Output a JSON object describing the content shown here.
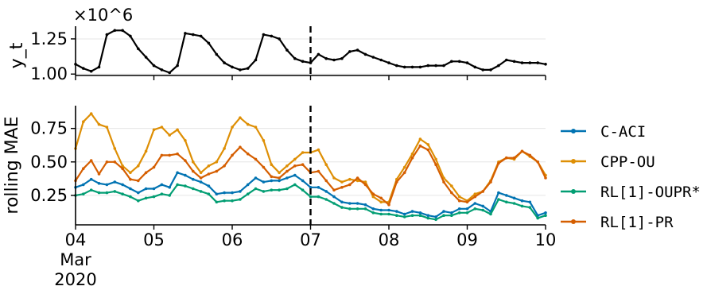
{
  "chart_data": [
    {
      "type": "line",
      "ylabel": "y_t",
      "y_multiplier": "×10^6",
      "ylim": [
        0.99,
        1.34
      ],
      "yticks": [
        "1.00",
        "1.25"
      ],
      "ytick_values": [
        1.0,
        1.25
      ],
      "grid": "horizontal",
      "vline_x": 3.0,
      "series": [
        {
          "color": "#000000",
          "x": [
            0,
            0.1,
            0.2,
            0.3,
            0.4,
            0.5,
            0.6,
            0.7,
            0.8,
            0.9,
            1.0,
            1.1,
            1.2,
            1.3,
            1.4,
            1.5,
            1.6,
            1.7,
            1.8,
            1.9,
            2.0,
            2.1,
            2.2,
            2.3,
            2.4,
            2.5,
            2.6,
            2.7,
            2.8,
            2.9,
            3.0,
            3.1,
            3.2,
            3.3,
            3.4,
            3.5,
            3.6,
            3.7,
            3.8,
            3.9,
            4.0,
            4.1,
            4.2,
            4.3,
            4.4,
            4.5,
            4.6,
            4.7,
            4.8,
            4.9,
            5.0,
            5.1,
            5.2,
            5.3,
            5.4,
            5.5,
            5.6,
            5.7,
            5.8,
            5.9,
            6.0
          ],
          "values": [
            1.07,
            1.04,
            1.02,
            1.05,
            1.28,
            1.31,
            1.31,
            1.27,
            1.18,
            1.12,
            1.06,
            1.03,
            1.01,
            1.06,
            1.29,
            1.28,
            1.27,
            1.22,
            1.14,
            1.08,
            1.05,
            1.03,
            1.04,
            1.1,
            1.28,
            1.27,
            1.25,
            1.17,
            1.11,
            1.09,
            1.08,
            1.14,
            1.11,
            1.1,
            1.11,
            1.16,
            1.17,
            1.14,
            1.12,
            1.1,
            1.08,
            1.06,
            1.05,
            1.05,
            1.05,
            1.06,
            1.06,
            1.06,
            1.09,
            1.09,
            1.08,
            1.05,
            1.03,
            1.03,
            1.06,
            1.1,
            1.09,
            1.08,
            1.08,
            1.08,
            1.07
          ]
        }
      ]
    },
    {
      "type": "line",
      "ylabel": "rolling MAE",
      "xlabel": "",
      "ylim": [
        0.03,
        0.92
      ],
      "yticks": [
        "0.25",
        "0.50",
        "0.75"
      ],
      "ytick_values": [
        0.25,
        0.5,
        0.75
      ],
      "xticks": [
        "04",
        "05",
        "06",
        "07",
        "08",
        "09",
        "10"
      ],
      "xtick_values": [
        0,
        1,
        2,
        3,
        4,
        5,
        6
      ],
      "xtick_extra": [
        "Mar",
        "2020"
      ],
      "grid": "horizontal",
      "vline_x": 3.0,
      "legend": "right",
      "series": [
        {
          "name": "C-ACI",
          "color": "#0173b2",
          "x": [
            0,
            0.1,
            0.2,
            0.3,
            0.4,
            0.5,
            0.6,
            0.7,
            0.8,
            0.9,
            1.0,
            1.1,
            1.2,
            1.3,
            1.4,
            1.5,
            1.6,
            1.7,
            1.8,
            1.9,
            2.0,
            2.1,
            2.2,
            2.3,
            2.4,
            2.5,
            2.6,
            2.7,
            2.8,
            2.9,
            3.0,
            3.1,
            3.2,
            3.3,
            3.4,
            3.5,
            3.6,
            3.7,
            3.8,
            3.9,
            4.0,
            4.1,
            4.2,
            4.3,
            4.4,
            4.5,
            4.6,
            4.7,
            4.8,
            4.9,
            5.0,
            5.1,
            5.2,
            5.3,
            5.4,
            5.5,
            5.6,
            5.7,
            5.8,
            5.9,
            6.0
          ],
          "values": [
            0.31,
            0.33,
            0.37,
            0.34,
            0.33,
            0.35,
            0.33,
            0.3,
            0.27,
            0.3,
            0.3,
            0.33,
            0.31,
            0.42,
            0.4,
            0.37,
            0.35,
            0.32,
            0.26,
            0.27,
            0.27,
            0.28,
            0.33,
            0.38,
            0.35,
            0.36,
            0.36,
            0.38,
            0.4,
            0.36,
            0.31,
            0.31,
            0.28,
            0.24,
            0.2,
            0.19,
            0.19,
            0.18,
            0.15,
            0.14,
            0.14,
            0.13,
            0.11,
            0.13,
            0.12,
            0.1,
            0.09,
            0.13,
            0.12,
            0.15,
            0.15,
            0.19,
            0.17,
            0.13,
            0.27,
            0.25,
            0.23,
            0.21,
            0.2,
            0.1,
            0.12
          ]
        },
        {
          "name": "CPP-OU",
          "color": "#de8f05",
          "x": [
            0,
            0.1,
            0.2,
            0.3,
            0.4,
            0.5,
            0.6,
            0.7,
            0.8,
            0.9,
            1.0,
            1.1,
            1.2,
            1.3,
            1.4,
            1.5,
            1.6,
            1.7,
            1.8,
            1.9,
            2.0,
            2.1,
            2.2,
            2.3,
            2.4,
            2.5,
            2.6,
            2.7,
            2.8,
            2.9,
            3.0,
            3.1,
            3.2,
            3.3,
            3.4,
            3.5,
            3.6,
            3.7,
            3.8,
            3.9,
            4.0,
            4.1,
            4.2,
            4.3,
            4.4,
            4.5,
            4.6,
            4.7,
            4.8,
            4.9,
            5.0,
            5.1,
            5.2,
            5.3,
            5.4,
            5.5,
            5.6,
            5.7,
            5.8,
            5.9,
            6.0
          ],
          "values": [
            0.6,
            0.8,
            0.86,
            0.78,
            0.76,
            0.6,
            0.47,
            0.42,
            0.47,
            0.58,
            0.74,
            0.76,
            0.7,
            0.74,
            0.66,
            0.5,
            0.42,
            0.47,
            0.5,
            0.6,
            0.76,
            0.83,
            0.78,
            0.76,
            0.66,
            0.48,
            0.42,
            0.47,
            0.52,
            0.57,
            0.57,
            0.59,
            0.48,
            0.38,
            0.35,
            0.37,
            0.36,
            0.35,
            0.24,
            0.2,
            0.2,
            0.37,
            0.46,
            0.56,
            0.67,
            0.63,
            0.52,
            0.38,
            0.32,
            0.24,
            0.21,
            0.26,
            0.28,
            0.36,
            0.5,
            0.53,
            0.52,
            0.58,
            0.54,
            0.5,
            0.4
          ]
        },
        {
          "name": "RL[1]-OUPR*",
          "color": "#029e73",
          "x": [
            0,
            0.1,
            0.2,
            0.3,
            0.4,
            0.5,
            0.6,
            0.7,
            0.8,
            0.9,
            1.0,
            1.1,
            1.2,
            1.3,
            1.4,
            1.5,
            1.6,
            1.7,
            1.8,
            1.9,
            2.0,
            2.1,
            2.2,
            2.3,
            2.4,
            2.5,
            2.6,
            2.7,
            2.8,
            2.9,
            3.0,
            3.1,
            3.2,
            3.3,
            3.4,
            3.5,
            3.6,
            3.7,
            3.8,
            3.9,
            4.0,
            4.1,
            4.2,
            4.3,
            4.4,
            4.5,
            4.6,
            4.7,
            4.8,
            4.9,
            5.0,
            5.1,
            5.2,
            5.3,
            5.4,
            5.5,
            5.6,
            5.7,
            5.8,
            5.9,
            6.0
          ],
          "values": [
            0.25,
            0.26,
            0.29,
            0.27,
            0.27,
            0.28,
            0.26,
            0.24,
            0.21,
            0.23,
            0.24,
            0.26,
            0.25,
            0.33,
            0.32,
            0.3,
            0.28,
            0.26,
            0.2,
            0.21,
            0.21,
            0.22,
            0.26,
            0.3,
            0.28,
            0.29,
            0.29,
            0.3,
            0.33,
            0.29,
            0.24,
            0.24,
            0.22,
            0.19,
            0.16,
            0.15,
            0.15,
            0.15,
            0.12,
            0.11,
            0.11,
            0.1,
            0.09,
            0.1,
            0.1,
            0.08,
            0.07,
            0.1,
            0.1,
            0.12,
            0.12,
            0.15,
            0.14,
            0.11,
            0.22,
            0.2,
            0.19,
            0.17,
            0.16,
            0.08,
            0.1
          ]
        },
        {
          "name": "RL[1]-PR",
          "color": "#d55e00",
          "x": [
            0,
            0.1,
            0.2,
            0.3,
            0.4,
            0.5,
            0.6,
            0.7,
            0.8,
            0.9,
            1.0,
            1.1,
            1.2,
            1.3,
            1.4,
            1.5,
            1.6,
            1.7,
            1.8,
            1.9,
            2.0,
            2.1,
            2.2,
            2.3,
            2.4,
            2.5,
            2.6,
            2.7,
            2.8,
            2.9,
            3.0,
            3.1,
            3.2,
            3.3,
            3.4,
            3.5,
            3.6,
            3.7,
            3.8,
            3.9,
            4.0,
            4.1,
            4.2,
            4.3,
            4.4,
            4.5,
            4.6,
            4.7,
            4.8,
            4.9,
            5.0,
            5.1,
            5.2,
            5.3,
            5.4,
            5.5,
            5.6,
            5.7,
            5.8,
            5.9,
            6.0
          ],
          "values": [
            0.36,
            0.45,
            0.51,
            0.41,
            0.5,
            0.5,
            0.45,
            0.37,
            0.36,
            0.42,
            0.46,
            0.55,
            0.55,
            0.56,
            0.51,
            0.43,
            0.38,
            0.41,
            0.43,
            0.47,
            0.55,
            0.61,
            0.56,
            0.52,
            0.46,
            0.39,
            0.38,
            0.43,
            0.47,
            0.48,
            0.42,
            0.43,
            0.36,
            0.29,
            0.31,
            0.33,
            0.38,
            0.33,
            0.26,
            0.23,
            0.18,
            0.35,
            0.42,
            0.53,
            0.62,
            0.59,
            0.48,
            0.35,
            0.27,
            0.21,
            0.2,
            0.24,
            0.28,
            0.35,
            0.49,
            0.53,
            0.53,
            0.58,
            0.55,
            0.5,
            0.38
          ]
        }
      ]
    }
  ]
}
